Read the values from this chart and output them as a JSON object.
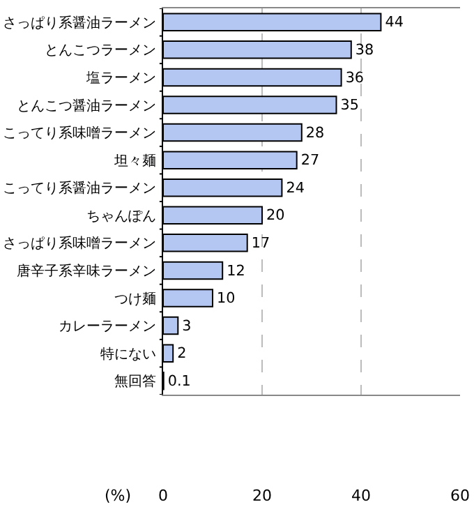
{
  "chart_data": {
    "type": "bar",
    "orientation": "horizontal",
    "xlabel": "(%)",
    "categories": [
      "さっぱり系醤油ラーメン",
      "とんこつラーメン",
      "塩ラーメン",
      "とんこつ醤油ラーメン",
      "こってり系味噌ラーメン",
      "坦々麺",
      "こってり系醤油ラーメン",
      "ちゃんぽん",
      "さっぱり系味噌ラーメン",
      "唐辛子系辛味ラーメン",
      "つけ麺",
      "カレーラーメン",
      "特にない",
      "無回答"
    ],
    "values": [
      44,
      38,
      36,
      35,
      28,
      27,
      24,
      20,
      17,
      12,
      10,
      3,
      2,
      0.1
    ],
    "color": "#b4c6f2",
    "xlim": [
      0,
      60
    ],
    "xticks": [
      0,
      20,
      40,
      60
    ],
    "grid": "x",
    "data_labels": true
  }
}
